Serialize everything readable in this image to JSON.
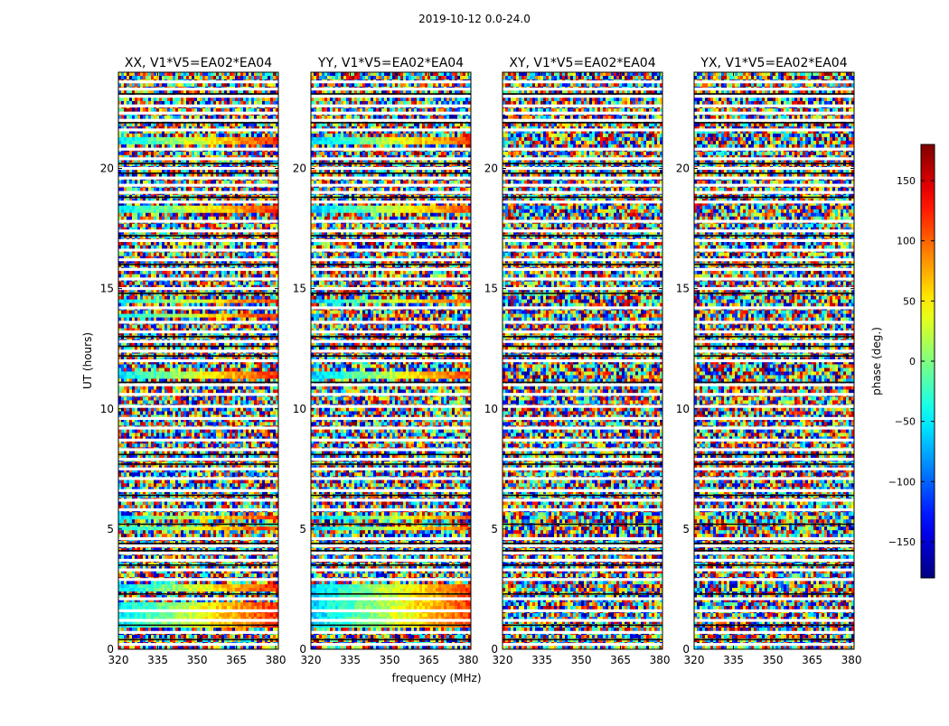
{
  "figure": {
    "suptitle": "2019-10-12 0.0-24.0"
  },
  "chart_data": [
    {
      "type": "heatmap",
      "title": "XX, V1*V5=EA02*EA04",
      "xlabel": "frequency (MHz)",
      "ylabel": "UT (hours)",
      "xlim": [
        320,
        381
      ],
      "ylim": [
        0,
        24
      ],
      "xticks": [
        320,
        335,
        350,
        365,
        380
      ],
      "yticks": [
        0,
        5,
        10,
        15,
        20
      ],
      "coherent_bands": [
        [
          0.9,
          1.9
        ],
        [
          2.4,
          2.7
        ],
        [
          4.9,
          5.1
        ],
        [
          5.4,
          5.6
        ],
        [
          11.3,
          11.6
        ],
        [
          13.8,
          14.0
        ],
        [
          14.4,
          14.6
        ],
        [
          18.1,
          18.4
        ],
        [
          21.0,
          21.3
        ]
      ]
    },
    {
      "type": "heatmap",
      "title": "YY, V1*V5=EA02*EA04",
      "xlabel": "frequency (MHz)",
      "ylabel": "",
      "xlim": [
        320,
        381
      ],
      "ylim": [
        0,
        24
      ],
      "xticks": [
        320,
        335,
        350,
        365,
        380
      ],
      "yticks": [
        0,
        5,
        10,
        15,
        20
      ],
      "coherent_bands": [
        [
          0.9,
          2.7
        ],
        [
          4.9,
          5.1
        ],
        [
          5.4,
          5.6
        ],
        [
          11.3,
          11.6
        ],
        [
          14.4,
          14.6
        ],
        [
          18.1,
          18.4
        ],
        [
          21.0,
          21.3
        ]
      ]
    },
    {
      "type": "heatmap",
      "title": "XY, V1*V5=EA02*EA04",
      "xlabel": "",
      "ylabel": "",
      "xlim": [
        320,
        381
      ],
      "ylim": [
        0,
        24
      ],
      "xticks": [
        320,
        335,
        350,
        365,
        380
      ],
      "yticks": [
        0,
        5,
        10,
        15,
        20
      ],
      "coherent_bands": []
    },
    {
      "type": "heatmap",
      "title": "YX, V1*V5=EA02*EA04",
      "xlabel": "",
      "ylabel": "",
      "xlim": [
        320,
        381
      ],
      "ylim": [
        0,
        24
      ],
      "xticks": [
        320,
        335,
        350,
        365,
        380
      ],
      "yticks": [
        0,
        5,
        10,
        15,
        20
      ],
      "coherent_bands": []
    }
  ],
  "colorbar": {
    "label": "phase (deg.)",
    "range": [
      -180,
      180
    ],
    "ticks": [
      150,
      100,
      50,
      0,
      -50,
      -100,
      -150
    ],
    "tick_labels": [
      "150",
      "100",
      "50",
      "0",
      "−50",
      "−100",
      "−150"
    ],
    "colormap": "jet"
  },
  "flagged_rows_ut": [
    0.2,
    0.7,
    1.2,
    1.6,
    2.1,
    2.9,
    3.3,
    3.7,
    4.0,
    4.3,
    4.6,
    5.8,
    6.2,
    6.6,
    7.1,
    7.5,
    7.9,
    8.3,
    8.7,
    9.2,
    9.6,
    10.1,
    10.6,
    11.0,
    12.0,
    12.4,
    12.8,
    13.2,
    13.6,
    14.2,
    15.0,
    15.4,
    15.8,
    16.2,
    16.6,
    17.0,
    17.4,
    17.8,
    18.6,
    19.0,
    19.3,
    19.6,
    20.0,
    20.4,
    20.8,
    21.6,
    22.0,
    22.3,
    22.6,
    23.0,
    23.3,
    23.6
  ],
  "dark_rows_ut": [
    0.4,
    1.0,
    2.3,
    3.5,
    4.1,
    4.4,
    5.2,
    6.4,
    7.7,
    8.1,
    11.1,
    12.2,
    12.6,
    13.0,
    14.8,
    16.0,
    17.2,
    18.8,
    19.8,
    20.2,
    21.9,
    23.1
  ]
}
